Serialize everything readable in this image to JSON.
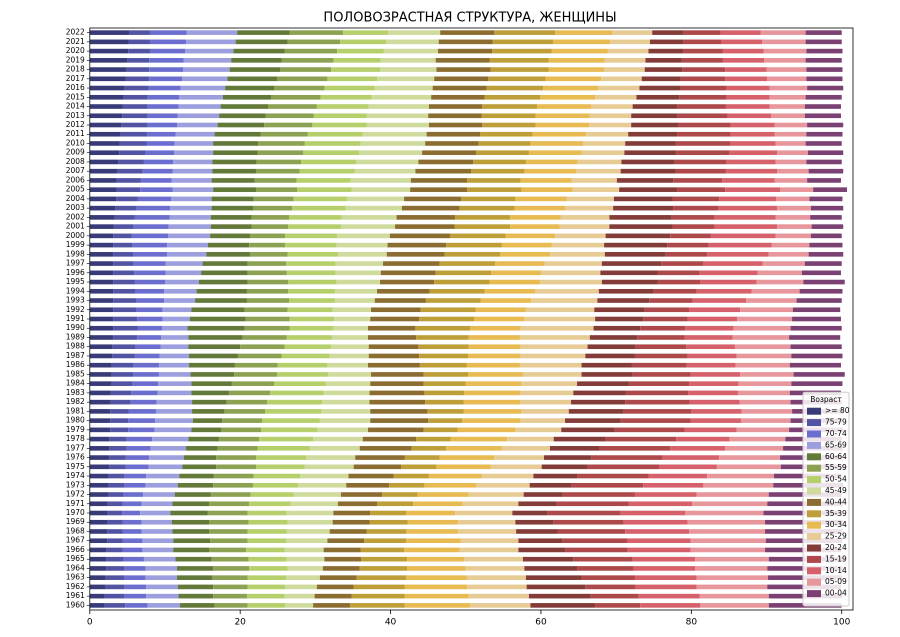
{
  "chart_data": {
    "type": "bar",
    "orientation": "horizontal",
    "stacked": true,
    "title": "ПОЛОВОЗРАСТНАЯ СТРУКТУРА, ЖЕНЩИНЫ",
    "categories": [
      "1960",
      "1961",
      "1962",
      "1963",
      "1964",
      "1965",
      "1966",
      "1967",
      "1968",
      "1969",
      "1970",
      "1971",
      "1972",
      "1973",
      "1974",
      "1975",
      "1976",
      "1977",
      "1978",
      "1979",
      "1980",
      "1981",
      "1982",
      "1983",
      "1984",
      "1985",
      "1986",
      "1987",
      "1988",
      "1989",
      "1990",
      "1991",
      "1992",
      "1993",
      "1994",
      "1995",
      "1996",
      "1997",
      "1998",
      "1999",
      "2000",
      "2001",
      "2002",
      "2003",
      "2004",
      "2005",
      "2006",
      "2007",
      "2008",
      "2009",
      "2010",
      "2011",
      "2012",
      "2013",
      "2014",
      "2015",
      "2016",
      "2017",
      "2018",
      "2019",
      "2020",
      "2021",
      "2022"
    ],
    "series": [
      {
        "name": ">= 80",
        "color": "#393b79",
        "values": [
          2.0,
          2.0,
          2.1,
          2.1,
          2.2,
          2.2,
          2.2,
          2.3,
          2.3,
          2.4,
          2.4,
          2.4,
          2.5,
          2.5,
          2.5,
          2.6,
          2.6,
          2.6,
          2.6,
          2.7,
          2.7,
          2.7,
          2.8,
          2.8,
          2.9,
          2.9,
          2.9,
          3.0,
          3.0,
          3.1,
          3.1,
          3.1,
          3.1,
          3.1,
          3.1,
          3.1,
          3.1,
          3.1,
          3.1,
          3.1,
          3.1,
          3.2,
          3.3,
          3.4,
          3.5,
          3.6,
          3.6,
          3.7,
          3.8,
          3.9,
          4.0,
          4.1,
          4.2,
          4.3,
          4.4,
          4.5,
          4.6,
          4.8,
          4.9,
          5.0,
          5.1,
          5.2,
          5.3
        ]
      },
      {
        "name": "75-79",
        "color": "#5254a3",
        "values": [
          2.7,
          2.6,
          2.5,
          2.5,
          2.4,
          2.3,
          2.2,
          2.1,
          2.1,
          2.0,
          1.9,
          2.0,
          2.0,
          2.1,
          2.1,
          2.2,
          2.2,
          2.3,
          2.3,
          2.4,
          2.4,
          2.5,
          2.6,
          2.7,
          2.8,
          2.9,
          2.9,
          3.0,
          3.1,
          3.2,
          3.3,
          3.2,
          3.1,
          3.1,
          3.0,
          2.9,
          2.8,
          2.7,
          2.7,
          2.6,
          2.5,
          2.6,
          2.7,
          2.8,
          2.9,
          3.1,
          3.2,
          3.3,
          3.4,
          3.5,
          3.6,
          3.5,
          3.5,
          3.4,
          3.3,
          3.2,
          3.2,
          3.1,
          3.0,
          2.9,
          2.9,
          2.8,
          2.7
        ]
      },
      {
        "name": "70-74",
        "color": "#6b6ecf",
        "values": [
          3.0,
          2.9,
          2.9,
          2.8,
          2.8,
          2.7,
          2.6,
          2.6,
          2.5,
          2.5,
          2.4,
          2.5,
          2.6,
          2.8,
          2.9,
          3.0,
          3.1,
          3.2,
          3.4,
          3.5,
          3.6,
          3.6,
          3.5,
          3.5,
          3.4,
          3.4,
          3.4,
          3.3,
          3.3,
          3.2,
          3.2,
          3.4,
          3.5,
          3.7,
          3.8,
          4.0,
          4.2,
          4.3,
          4.5,
          4.6,
          4.8,
          4.7,
          4.6,
          4.5,
          4.4,
          4.3,
          4.1,
          4.0,
          3.9,
          3.8,
          3.7,
          3.8,
          3.9,
          4.0,
          4.1,
          4.2,
          4.3,
          4.4,
          4.5,
          4.6,
          4.7,
          4.8,
          4.9
        ]
      },
      {
        "name": "65-69",
        "color": "#9c9ede",
        "values": [
          4.3,
          4.3,
          4.2,
          4.2,
          4.2,
          4.2,
          4.1,
          4.1,
          4.1,
          4.0,
          4.0,
          4.1,
          4.2,
          4.3,
          4.4,
          4.5,
          4.6,
          4.7,
          4.8,
          4.9,
          5.0,
          4.8,
          4.7,
          4.5,
          4.4,
          4.2,
          4.0,
          3.9,
          3.7,
          3.6,
          3.4,
          3.6,
          3.8,
          4.1,
          4.3,
          4.5,
          4.7,
          4.9,
          5.2,
          5.4,
          5.6,
          5.6,
          5.5,
          5.5,
          5.4,
          5.4,
          5.3,
          5.3,
          5.2,
          5.2,
          5.1,
          5.2,
          5.4,
          5.5,
          5.6,
          5.8,
          5.9,
          6.0,
          6.2,
          6.3,
          6.4,
          6.6,
          6.7
        ]
      },
      {
        "name": "60-64",
        "color": "#637939",
        "values": [
          4.6,
          4.6,
          4.7,
          4.7,
          4.8,
          4.8,
          4.8,
          4.9,
          4.9,
          5.0,
          5.0,
          4.9,
          4.8,
          4.7,
          4.6,
          4.5,
          4.3,
          4.2,
          4.1,
          4.0,
          3.9,
          4.3,
          4.6,
          5.0,
          5.4,
          5.8,
          6.1,
          6.5,
          6.9,
          7.2,
          7.6,
          7.4,
          7.1,
          6.9,
          6.7,
          6.5,
          6.2,
          6.0,
          5.8,
          5.5,
          5.3,
          5.4,
          5.4,
          5.5,
          5.6,
          5.7,
          5.7,
          5.8,
          5.9,
          5.9,
          6.0,
          6.1,
          6.2,
          6.2,
          6.3,
          6.4,
          6.5,
          6.6,
          6.7,
          6.7,
          6.8,
          6.9,
          7.0
        ]
      },
      {
        "name": "55-59",
        "color": "#8ca252",
        "values": [
          4.4,
          4.5,
          4.6,
          4.7,
          4.8,
          4.9,
          4.9,
          5.0,
          5.1,
          5.2,
          5.3,
          5.3,
          5.3,
          5.3,
          5.3,
          5.3,
          5.3,
          5.3,
          5.3,
          5.3,
          5.3,
          5.4,
          5.4,
          5.5,
          5.6,
          5.7,
          5.7,
          5.8,
          5.9,
          5.9,
          6.0,
          5.9,
          5.7,
          5.6,
          5.5,
          5.4,
          5.2,
          5.1,
          5.0,
          4.8,
          4.7,
          4.9,
          5.0,
          5.2,
          5.3,
          5.5,
          5.6,
          5.8,
          5.9,
          6.1,
          6.2,
          6.3,
          6.4,
          6.4,
          6.5,
          6.6,
          6.7,
          6.7,
          6.8,
          6.9,
          7.0,
          7.0,
          7.1
        ]
      },
      {
        "name": "50-54",
        "color": "#b5cf6b",
        "values": [
          5.0,
          5.0,
          5.0,
          5.1,
          5.1,
          5.1,
          5.1,
          5.1,
          5.2,
          5.2,
          5.2,
          5.5,
          5.7,
          6.0,
          6.2,
          6.5,
          6.7,
          7.0,
          7.2,
          7.5,
          7.7,
          7.5,
          7.3,
          7.1,
          6.9,
          6.8,
          6.6,
          6.4,
          6.2,
          6.0,
          5.8,
          5.9,
          6.0,
          6.1,
          6.2,
          6.4,
          6.5,
          6.6,
          6.7,
          6.8,
          6.9,
          7.0,
          7.0,
          7.1,
          7.1,
          7.2,
          7.2,
          7.3,
          7.3,
          7.4,
          7.4,
          7.3,
          7.2,
          7.0,
          6.9,
          6.8,
          6.7,
          6.6,
          6.5,
          6.3,
          6.2,
          6.1,
          6.0
        ]
      },
      {
        "name": "45-49",
        "color": "#cedb9c",
        "values": [
          3.7,
          4.0,
          4.2,
          4.5,
          4.7,
          5.0,
          5.2,
          5.5,
          5.7,
          6.0,
          6.2,
          6.3,
          6.3,
          6.4,
          6.4,
          6.5,
          6.5,
          6.6,
          6.6,
          6.7,
          6.7,
          6.5,
          6.3,
          6.1,
          5.9,
          5.7,
          5.4,
          5.2,
          5.0,
          4.8,
          4.6,
          4.8,
          5.1,
          5.3,
          5.6,
          5.8,
          6.0,
          6.3,
          6.5,
          6.8,
          7.0,
          7.2,
          7.3,
          7.5,
          7.6,
          7.8,
          8.0,
          8.1,
          8.3,
          8.4,
          8.6,
          8.5,
          8.3,
          8.2,
          8.0,
          7.9,
          7.7,
          7.6,
          7.5,
          7.3,
          7.2,
          7.0,
          6.9
        ]
      },
      {
        "name": "40-44",
        "color": "#8c6d31",
        "values": [
          4.9,
          4.9,
          4.9,
          4.9,
          4.9,
          4.9,
          4.9,
          4.9,
          4.9,
          4.9,
          4.9,
          5.2,
          5.5,
          5.7,
          6.0,
          6.3,
          6.6,
          6.9,
          7.1,
          7.4,
          7.7,
          7.6,
          7.4,
          7.3,
          7.1,
          7.0,
          6.9,
          6.7,
          6.6,
          6.4,
          6.3,
          6.5,
          6.6,
          6.8,
          7.0,
          7.2,
          7.3,
          7.5,
          7.7,
          7.8,
          8.0,
          7.9,
          7.8,
          7.7,
          7.6,
          7.6,
          7.5,
          7.4,
          7.3,
          7.2,
          7.1,
          7.1,
          7.1,
          7.1,
          7.1,
          7.1,
          7.2,
          7.2,
          7.2,
          7.2,
          7.2,
          7.2,
          7.2
        ]
      },
      {
        "name": "35-39",
        "color": "#bd9e39",
        "values": [
          7.3,
          7.1,
          6.8,
          6.6,
          6.3,
          6.1,
          5.8,
          5.6,
          5.3,
          5.1,
          4.8,
          4.8,
          4.7,
          4.7,
          4.7,
          4.7,
          4.6,
          4.6,
          4.6,
          4.5,
          4.5,
          4.8,
          5.1,
          5.3,
          5.6,
          5.9,
          6.2,
          6.5,
          6.7,
          7.0,
          7.3,
          7.3,
          7.3,
          7.3,
          7.3,
          7.4,
          7.4,
          7.4,
          7.4,
          7.4,
          7.4,
          7.4,
          7.3,
          7.3,
          7.2,
          7.2,
          7.1,
          7.1,
          7.0,
          7.0,
          6.9,
          7.0,
          7.1,
          7.2,
          7.3,
          7.4,
          7.5,
          7.6,
          7.7,
          7.8,
          7.9,
          8.0,
          8.1
        ]
      },
      {
        "name": "30-34",
        "color": "#e7ba52",
        "values": [
          8.7,
          8.5,
          8.3,
          8.0,
          7.8,
          7.6,
          7.4,
          7.2,
          6.9,
          6.7,
          6.5,
          6.6,
          6.8,
          6.9,
          7.0,
          7.2,
          7.3,
          7.4,
          7.5,
          7.7,
          7.8,
          7.7,
          7.6,
          7.5,
          7.4,
          7.3,
          7.1,
          7.0,
          6.9,
          6.8,
          6.7,
          6.7,
          6.7,
          6.7,
          6.7,
          6.7,
          6.6,
          6.6,
          6.6,
          6.6,
          6.6,
          6.6,
          6.7,
          6.7,
          6.8,
          6.8,
          6.8,
          6.9,
          6.9,
          7.0,
          7.0,
          7.1,
          7.1,
          7.2,
          7.2,
          7.3,
          7.3,
          7.4,
          7.4,
          7.5,
          7.5,
          7.6,
          7.6
        ]
      },
      {
        "name": "25-29",
        "color": "#e7cb94",
        "values": [
          8.0,
          8.0,
          7.9,
          7.9,
          7.8,
          7.8,
          7.8,
          7.7,
          7.7,
          7.6,
          7.6,
          7.4,
          7.3,
          7.1,
          6.9,
          6.8,
          6.6,
          6.4,
          6.2,
          6.1,
          5.9,
          6.3,
          6.7,
          7.0,
          7.4,
          7.8,
          8.2,
          8.6,
          8.9,
          9.3,
          9.7,
          9.4,
          9.1,
          8.8,
          8.5,
          8.2,
          7.9,
          7.6,
          7.3,
          7.0,
          6.7,
          6.6,
          6.5,
          6.4,
          6.3,
          6.2,
          6.0,
          5.9,
          5.8,
          5.7,
          5.6,
          5.6,
          5.6,
          5.5,
          5.5,
          5.5,
          5.5,
          5.4,
          5.4,
          5.4,
          5.4,
          5.3,
          5.3
        ]
      },
      {
        "name": "20-24",
        "color": "#843c39",
        "values": [
          8.6,
          8.2,
          7.8,
          7.4,
          7.0,
          6.7,
          6.3,
          5.9,
          5.5,
          5.1,
          4.7,
          5.0,
          5.2,
          5.5,
          5.8,
          6.1,
          6.3,
          6.6,
          6.9,
          7.1,
          7.4,
          7.3,
          7.2,
          7.0,
          6.9,
          6.8,
          6.7,
          6.6,
          6.4,
          6.3,
          6.2,
          6.4,
          6.7,
          6.9,
          7.2,
          7.4,
          7.6,
          7.9,
          8.1,
          8.4,
          8.6,
          8.4,
          8.2,
          8.0,
          7.8,
          7.7,
          7.5,
          7.3,
          7.1,
          6.9,
          6.7,
          6.5,
          6.3,
          6.1,
          5.9,
          5.7,
          5.5,
          5.2,
          5.0,
          4.8,
          4.6,
          4.4,
          4.2
        ]
      },
      {
        "name": "15-19",
        "color": "#ad494a",
        "values": [
          6.0,
          6.4,
          6.7,
          7.1,
          7.5,
          7.9,
          8.2,
          8.6,
          9.0,
          9.3,
          9.7,
          9.7,
          9.6,
          9.6,
          9.5,
          9.5,
          9.5,
          9.4,
          9.4,
          9.3,
          9.3,
          9.0,
          8.6,
          8.3,
          8.0,
          7.7,
          7.3,
          7.0,
          6.7,
          6.3,
          6.0,
          5.9,
          5.9,
          5.8,
          5.8,
          5.7,
          5.6,
          5.6,
          5.5,
          5.5,
          5.4,
          5.6,
          5.8,
          6.0,
          6.2,
          6.4,
          6.5,
          6.7,
          6.9,
          7.1,
          7.3,
          7.1,
          6.9,
          6.7,
          6.5,
          6.3,
          6.1,
          5.9,
          5.7,
          5.5,
          5.3,
          5.1,
          4.9
        ]
      },
      {
        "name": "10-14",
        "color": "#d6616b",
        "values": [
          8.0,
          8.1,
          8.1,
          8.2,
          8.2,
          8.3,
          8.4,
          8.4,
          8.5,
          8.5,
          8.6,
          8.4,
          8.2,
          8.0,
          7.8,
          7.7,
          7.5,
          7.3,
          7.1,
          6.9,
          6.7,
          6.7,
          6.6,
          6.6,
          6.6,
          6.6,
          6.5,
          6.5,
          6.5,
          6.4,
          6.4,
          6.6,
          6.8,
          7.1,
          7.3,
          7.5,
          7.7,
          7.9,
          8.2,
          8.4,
          8.6,
          8.3,
          8.1,
          7.8,
          7.6,
          7.3,
          7.0,
          6.8,
          6.5,
          6.3,
          6.0,
          5.9,
          5.9,
          5.8,
          5.8,
          5.7,
          5.7,
          5.6,
          5.5,
          5.5,
          5.4,
          5.4,
          5.3
        ]
      },
      {
        "name": "05-09",
        "color": "#e7969c",
        "values": [
          9.1,
          9.2,
          9.4,
          9.5,
          9.6,
          9.8,
          9.9,
          10.0,
          10.1,
          10.3,
          10.4,
          10.0,
          9.6,
          9.3,
          8.9,
          8.5,
          8.1,
          7.7,
          7.4,
          7.0,
          6.6,
          6.7,
          6.8,
          6.9,
          7.0,
          7.1,
          7.2,
          7.3,
          7.4,
          7.5,
          7.6,
          7.3,
          7.0,
          6.7,
          6.4,
          6.2,
          5.9,
          5.6,
          5.3,
          5.0,
          4.7,
          4.6,
          4.6,
          4.5,
          4.4,
          4.4,
          4.3,
          4.2,
          4.1,
          4.1,
          4.0,
          4.2,
          4.3,
          4.5,
          4.7,
          4.8,
          5.0,
          5.2,
          5.3,
          5.5,
          5.7,
          5.8,
          6.0
        ]
      },
      {
        "name": "00-04",
        "color": "#7b4173",
        "values": [
          9.7,
          9.8,
          9.8,
          9.9,
          10.0,
          10.1,
          10.1,
          10.2,
          10.3,
          10.3,
          10.4,
          10.0,
          9.7,
          9.3,
          9.0,
          8.6,
          8.2,
          7.9,
          7.5,
          7.2,
          6.8,
          6.8,
          6.8,
          6.8,
          6.8,
          6.8,
          6.8,
          6.8,
          6.8,
          6.8,
          6.8,
          6.5,
          6.3,
          6.0,
          5.7,
          5.5,
          5.2,
          4.9,
          4.6,
          4.4,
          4.1,
          4.2,
          4.2,
          4.3,
          4.4,
          4.5,
          4.5,
          4.6,
          4.7,
          4.7,
          4.8,
          4.8,
          4.8,
          4.8,
          4.8,
          4.8,
          4.8,
          4.8,
          4.8,
          4.8,
          4.8,
          4.8,
          4.8
        ]
      }
    ],
    "xlim": [
      0,
      101.5
    ],
    "xticks": [
      0,
      20,
      40,
      60,
      80,
      100
    ],
    "legend": "lower right",
    "legend_title": "Возраст"
  }
}
